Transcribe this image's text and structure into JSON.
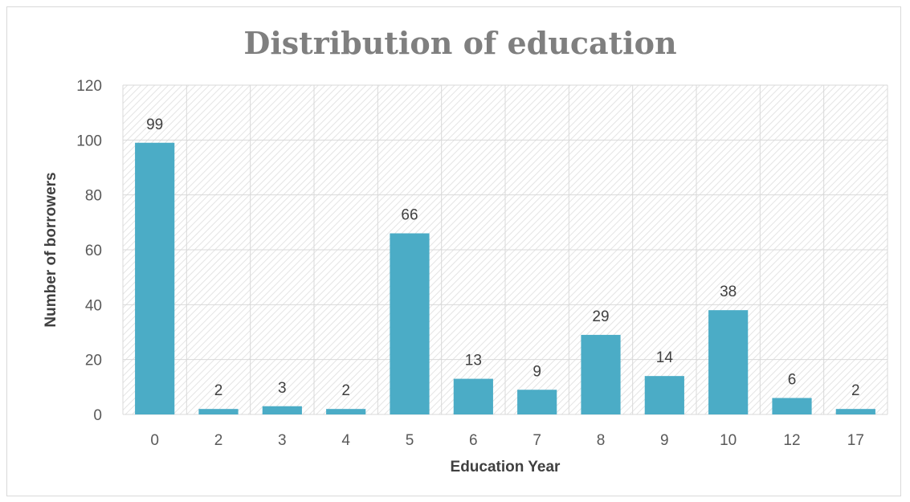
{
  "chart_data": {
    "type": "bar",
    "title": "Distribution of education",
    "xlabel": "Education Year",
    "ylabel": "Number of borrowers",
    "categories": [
      "0",
      "2",
      "3",
      "4",
      "5",
      "6",
      "7",
      "8",
      "9",
      "10",
      "12",
      "17"
    ],
    "values": [
      99,
      2,
      3,
      2,
      66,
      13,
      9,
      29,
      14,
      38,
      6,
      2
    ],
    "ylim": [
      0,
      120
    ],
    "yticks": [
      0,
      20,
      40,
      60,
      80,
      100,
      120
    ],
    "grid": true,
    "legend": "none",
    "colors": {
      "bar": "#4bacc6",
      "grid": "#d9d9d9",
      "plot_hatch": "#e4e4e4"
    }
  }
}
